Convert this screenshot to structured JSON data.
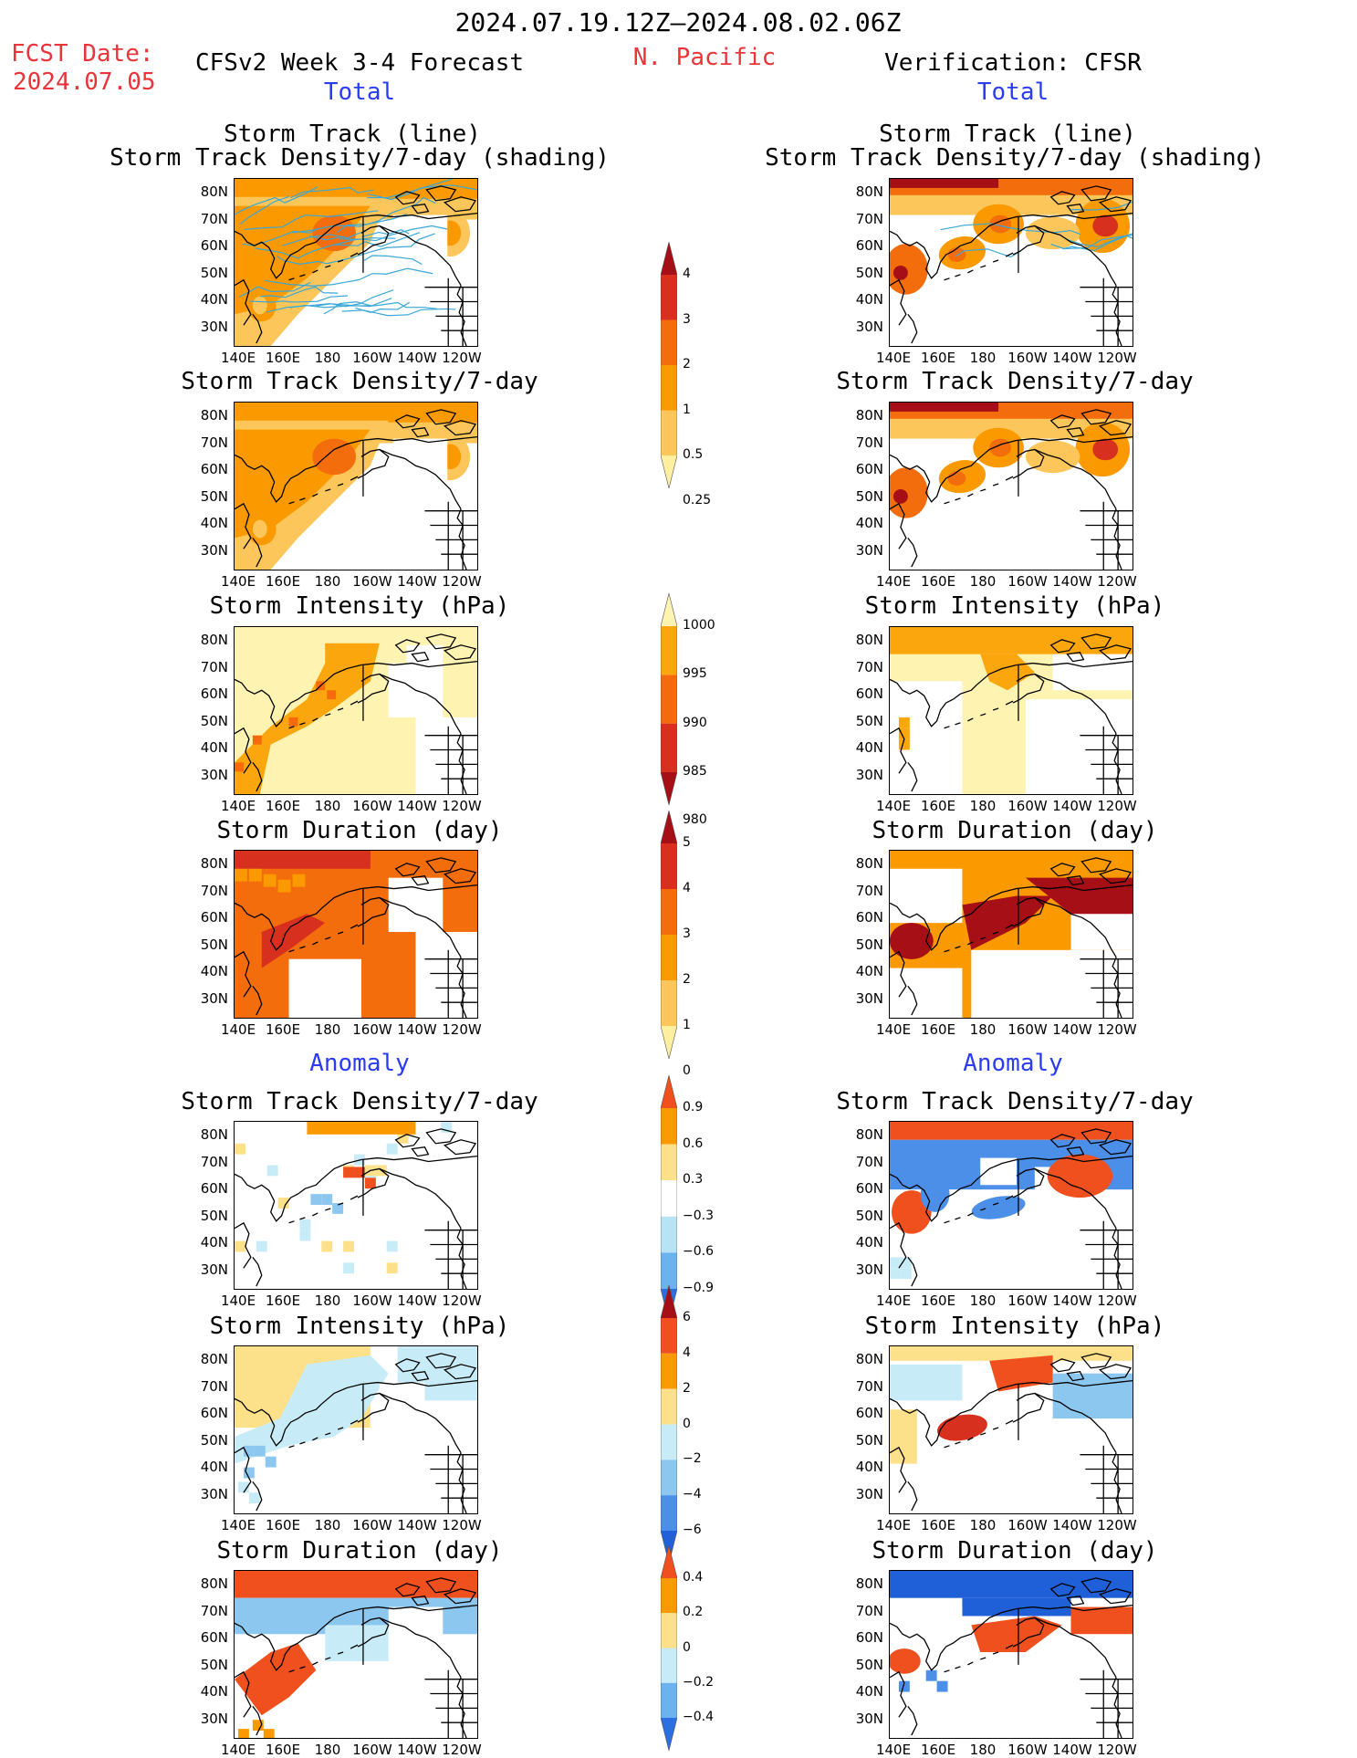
{
  "header": {
    "period": "2024.07.19.12Z–2024.08.02.06Z",
    "fcst_date_label": "FCST Date:",
    "fcst_date": "2024.07.05",
    "model_title": "CFSv2 Week 3-4 Forecast",
    "region": "N. Pacific",
    "verification_title": "Verification: CFSR",
    "left_total": "Total",
    "right_total": "Total",
    "left_anomaly": "Anomaly",
    "right_anomaly": "Anomaly"
  },
  "axes": {
    "lat_ticks": [
      "80N",
      "70N",
      "60N",
      "50N",
      "40N",
      "30N"
    ],
    "lon_ticks": [
      "140E",
      "160E",
      "180",
      "160W",
      "140W",
      "120W"
    ]
  },
  "panel_titles": {
    "track_line": "Storm Track (line)",
    "track_shading": "Storm Track Density/7-day (shading)",
    "density": "Storm Track Density/7-day",
    "intensity": "Storm Intensity (hPa)",
    "duration": "Storm Duration (day)"
  },
  "colorbars": {
    "density": {
      "labels": [
        "4",
        "3",
        "2",
        "1",
        "0.5",
        "0.25"
      ],
      "colors": [
        "#a50f15",
        "#d7301f",
        "#f46d0c",
        "#fb9a00",
        "#fcc65a",
        "#fef0a0"
      ]
    },
    "intensity": {
      "labels": [
        "1000",
        "995",
        "990",
        "985",
        "980"
      ],
      "colors": [
        "#fef3b0",
        "#fba60d",
        "#f46a0d",
        "#d7301f",
        "#a50f15"
      ]
    },
    "duration": {
      "labels": [
        "5",
        "4",
        "3",
        "2",
        "1",
        "0"
      ],
      "colors": [
        "#a50f15",
        "#d7301f",
        "#f46d0c",
        "#fb9a00",
        "#fcc65a",
        "#fef0a0"
      ]
    },
    "anom_density": {
      "labels": [
        "0.9",
        "0.6",
        "0.3",
        "−0.3",
        "−0.6",
        "−0.9"
      ],
      "colors": [
        "#f0501e",
        "#fb9a00",
        "#fde08a",
        "#ffffff",
        "#b8e3f5",
        "#6bb2ee",
        "#2b6fe0"
      ]
    },
    "anom_intensity": {
      "labels": [
        "6",
        "4",
        "2",
        "0",
        "−2",
        "−4",
        "−6"
      ],
      "colors": [
        "#a50f15",
        "#f0501e",
        "#fb9a00",
        "#fde08a",
        "#c8ecf7",
        "#8cc7f0",
        "#4b8fe8",
        "#2060d8"
      ]
    },
    "anom_duration": {
      "labels": [
        "0.4",
        "0.2",
        "0",
        "−0.2",
        "−0.4"
      ],
      "colors": [
        "#f0501e",
        "#fb9a00",
        "#fde08a",
        "#c8ecf7",
        "#6bb2ee",
        "#2b6fe0"
      ]
    }
  }
}
